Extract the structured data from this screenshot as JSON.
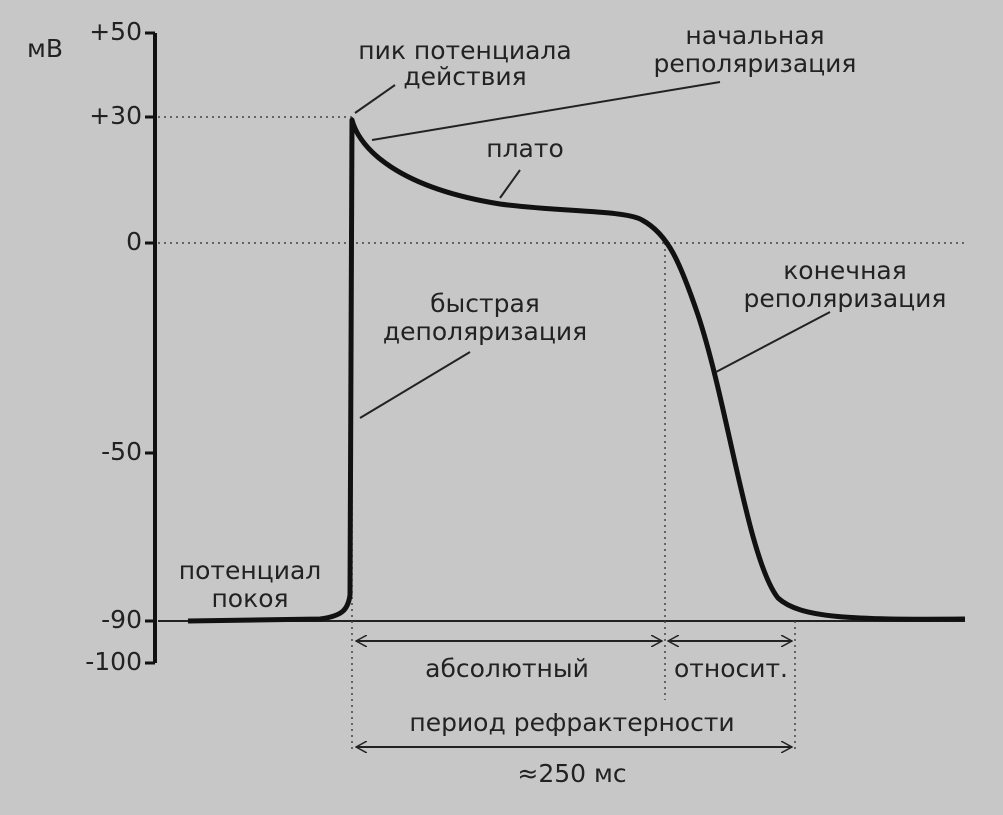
{
  "chart_data": {
    "type": "line",
    "y_unit": "мВ",
    "ylim": [
      -100,
      50
    ],
    "yticks": [
      {
        "value": 50,
        "label": "+50"
      },
      {
        "value": 30,
        "label": "+30"
      },
      0,
      -50,
      -90,
      -100
    ],
    "annotations": {
      "peak": [
        "пик потенциала",
        "действия"
      ],
      "initial_repolarization": [
        "начальная",
        "реполяризация"
      ],
      "plateau": "плато",
      "rapid_depolarization": [
        "быстрая",
        "деполяризация"
      ],
      "final_repolarization": [
        "конечная",
        "реполяризация"
      ],
      "resting_potential": [
        "потенциал",
        "покоя"
      ],
      "absolute": "абсолютный",
      "relative": "относит.",
      "refractory_period": "период рефрактерности",
      "duration": "≈250 мс"
    }
  }
}
